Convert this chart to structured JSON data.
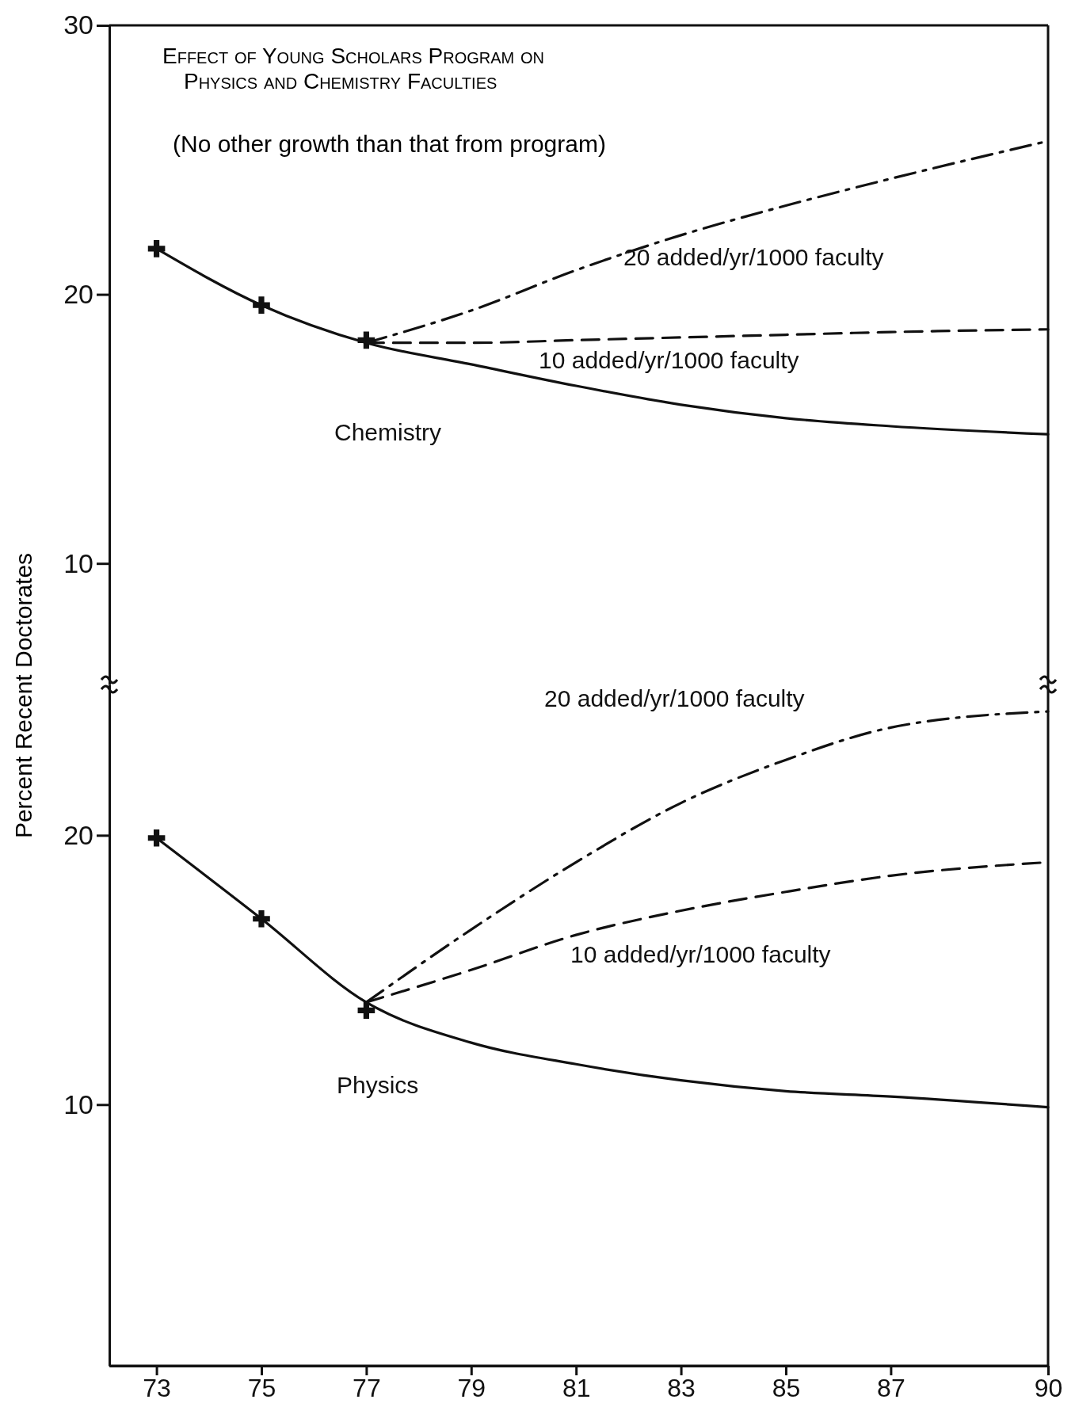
{
  "chart_data": [
    {
      "type": "line",
      "title": "Effect of Young Scholars Program on Physics and Chemistry Faculties",
      "subtitle": "(No other growth than that from program)",
      "ylabel": "Percent Recent Doctorates",
      "xlim": [
        72.1,
        90
      ],
      "xticks": [
        73,
        75,
        77,
        79,
        81,
        83,
        85,
        87,
        90
      ],
      "ylim": [
        5.5,
        30
      ],
      "yticks": [
        10,
        20,
        30
      ],
      "tick_labels": "y",
      "grid": false,
      "series": [
        {
          "type": "scatter",
          "marker": "cross",
          "color": "#111111",
          "x": [
            73,
            75,
            77
          ],
          "values": [
            21.7,
            19.6,
            18.3
          ]
        },
        {
          "name": "Chemistry",
          "color": "#111111",
          "line_style": "solid",
          "x": [
            73,
            75,
            77,
            79,
            81,
            83,
            85,
            87,
            90
          ],
          "values": [
            21.7,
            19.6,
            18.2,
            17.4,
            16.6,
            15.9,
            15.4,
            15.1,
            14.8
          ]
        },
        {
          "name": "20 added/yr/1000 faculty",
          "color": "#111111",
          "line_style": "dashdot",
          "x": [
            77,
            79,
            81,
            83,
            85,
            87,
            90
          ],
          "values": [
            18.2,
            19.4,
            20.9,
            22.2,
            23.3,
            24.3,
            25.7
          ]
        },
        {
          "name": "10 added/yr/1000 faculty",
          "color": "#111111",
          "line_style": "dashed",
          "x": [
            77,
            79,
            81,
            83,
            85,
            87,
            90
          ],
          "values": [
            18.2,
            18.2,
            18.3,
            18.4,
            18.5,
            18.6,
            18.7
          ]
        }
      ]
    },
    {
      "type": "line",
      "xlim": [
        72.1,
        90
      ],
      "xticks": [
        73,
        75,
        77,
        79,
        81,
        83,
        85,
        87,
        90
      ],
      "ylim": [
        0.3,
        25.6
      ],
      "yticks": [
        10,
        20
      ],
      "grid": false,
      "series": [
        {
          "type": "scatter",
          "marker": "cross",
          "color": "#111111",
          "x": [
            73,
            75,
            77
          ],
          "values": [
            19.9,
            16.9,
            13.5
          ]
        },
        {
          "name": "Physics",
          "color": "#111111",
          "line_style": "solid",
          "x": [
            73,
            75,
            77,
            79,
            81,
            83,
            85,
            87,
            90
          ],
          "values": [
            19.9,
            16.9,
            13.8,
            12.3,
            11.5,
            10.9,
            10.5,
            10.3,
            9.9
          ]
        },
        {
          "name": "20 added/yr/1000 faculty",
          "color": "#111111",
          "line_style": "dashdot",
          "x": [
            77,
            79,
            81,
            83,
            85,
            87,
            90
          ],
          "values": [
            13.8,
            16.5,
            19.0,
            21.2,
            22.8,
            24.0,
            24.6
          ]
        },
        {
          "name": "10 added/yr/1000 faculty",
          "color": "#111111",
          "line_style": "dashed",
          "x": [
            77,
            79,
            81,
            83,
            85,
            87,
            90
          ],
          "values": [
            13.8,
            15.0,
            16.3,
            17.2,
            17.9,
            18.5,
            19.0
          ]
        }
      ]
    }
  ]
}
